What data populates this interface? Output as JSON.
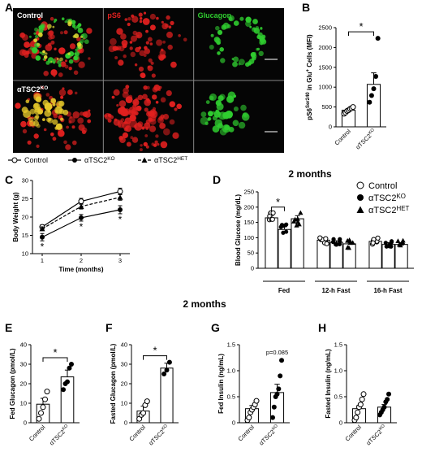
{
  "panel_labels": [
    "A",
    "B",
    "C",
    "D",
    "E",
    "F",
    "G",
    "H"
  ],
  "section_title": "2 months",
  "micrograph": {
    "channels": [
      "Control",
      "pS6",
      "Glucagon"
    ],
    "row2_label": "αTSC2",
    "row2_sup": "KO",
    "colors": {
      "pS6": "#e0201f",
      "Glucagon": "#2fcc2f",
      "Control": "#ffffff"
    }
  },
  "chart_data": [
    {
      "id": "B",
      "type": "bar",
      "categories": [
        "Control",
        "αTSC2KO"
      ],
      "values": [
        420,
        1070
      ],
      "errors": [
        40,
        290
      ],
      "points": [
        [
          330,
          360,
          400,
          420,
          450,
          470,
          500
        ],
        [
          620,
          790,
          960,
          1270,
          2230
        ]
      ],
      "ylabel": "pS6Ser240 in Glu+ Cells (MFI)",
      "ylim": [
        0,
        2500
      ],
      "yticks": [
        0,
        500,
        1000,
        1500,
        2000,
        2500
      ],
      "significance": "*"
    },
    {
      "id": "C",
      "type": "line",
      "x": [
        1,
        2,
        3
      ],
      "xlabel": "Time (months)",
      "ylabel": "Body Weight (g)",
      "ylim": [
        10,
        30
      ],
      "yticks": [
        10,
        15,
        20,
        25,
        30
      ],
      "series": [
        {
          "name": "Control",
          "values": [
            17.3,
            24.3,
            27
          ],
          "errors": [
            0.6,
            0.8,
            0.9
          ],
          "marker": "open-circle"
        },
        {
          "name": "αTSC2KO",
          "values": [
            14.5,
            19.8,
            22
          ],
          "errors": [
            1.0,
            0.9,
            1.1
          ],
          "marker": "filled-circle"
        },
        {
          "name": "αTSC2HET",
          "values": [
            16.8,
            22.9,
            25.4
          ],
          "errors": [
            0.5,
            0.7,
            0.8
          ],
          "marker": "filled-triangle"
        }
      ],
      "annotations": [
        "*",
        "*",
        "*"
      ],
      "legend_items": [
        {
          "label": "Control",
          "sup": ""
        },
        {
          "label": "αTSC2",
          "sup": "KO"
        },
        {
          "label": "αTSC2",
          "sup": "HET"
        }
      ]
    },
    {
      "id": "D",
      "type": "bar",
      "title": "2 months",
      "ylabel": "Blood Glucose (mg/dL)",
      "ylim": [
        0,
        250
      ],
      "yticks": [
        0,
        50,
        100,
        150,
        200,
        250
      ],
      "groups": [
        "Fed",
        "12-h Fast",
        "16-h Fast"
      ],
      "series": [
        {
          "name": "Control",
          "values": [
            165,
            92,
            88
          ],
          "errors": [
            8,
            6,
            6
          ]
        },
        {
          "name": "αTSC2KO",
          "values": [
            127,
            85,
            78
          ],
          "errors": [
            9,
            5,
            6
          ]
        },
        {
          "name": "αTSC2HET",
          "values": [
            162,
            80,
            78
          ],
          "errors": [
            10,
            6,
            6
          ]
        }
      ],
      "significance": "*",
      "legend_items": [
        {
          "label": "Control",
          "sup": ""
        },
        {
          "label": "αTSC2",
          "sup": "KO"
        },
        {
          "label": "αTSC2",
          "sup": "HET"
        }
      ]
    },
    {
      "id": "E",
      "type": "bar",
      "categories": [
        "Control",
        "αTSC2KO"
      ],
      "values": [
        9.5,
        23.5
      ],
      "errors": [
        3,
        3.5
      ],
      "points": [
        [
          2,
          5,
          8,
          12,
          16
        ],
        [
          17,
          20,
          21,
          28,
          30
        ]
      ],
      "ylabel": "Fed Glucagon (pmol/L)",
      "ylim": [
        0,
        40
      ],
      "yticks": [
        0,
        10,
        20,
        30,
        40
      ],
      "significance": "*"
    },
    {
      "id": "F",
      "type": "bar",
      "categories": [
        "Control",
        "αTSC2KO"
      ],
      "values": [
        6,
        28
      ],
      "errors": [
        2.5,
        2.5
      ],
      "points": [
        [
          2,
          4,
          5,
          9,
          11
        ],
        [
          25,
          27,
          31
        ]
      ],
      "ylabel": "Fasted Glucagon (pmol/L)",
      "ylim": [
        0,
        40
      ],
      "yticks": [
        0,
        10,
        20,
        30,
        40
      ],
      "significance": "*"
    },
    {
      "id": "G",
      "type": "bar",
      "categories": [
        "Control",
        "αTSC2KO"
      ],
      "values": [
        0.27,
        0.58
      ],
      "errors": [
        0.06,
        0.16
      ],
      "points": [
        [
          0.05,
          0.1,
          0.2,
          0.25,
          0.3,
          0.35,
          0.42
        ],
        [
          0.1,
          0.3,
          0.5,
          0.55,
          0.65,
          0.9,
          1.2
        ]
      ],
      "ylabel": "Fed Insulin (ng/mL)",
      "ylim": [
        0,
        1.5
      ],
      "yticks": [
        0,
        0.5,
        1.0,
        1.5
      ],
      "significance": "p=0.085"
    },
    {
      "id": "H",
      "type": "bar",
      "categories": [
        "Control",
        "αTSC2KO"
      ],
      "values": [
        0.27,
        0.3
      ],
      "errors": [
        0.06,
        0.05
      ],
      "points": [
        [
          0.05,
          0.1,
          0.2,
          0.3,
          0.35,
          0.45,
          0.55
        ],
        [
          0.15,
          0.2,
          0.25,
          0.3,
          0.4,
          0.45,
          0.55
        ]
      ],
      "ylabel": "Fasted Insulin (ng/mL)",
      "ylim": [
        0,
        1.5
      ],
      "yticks": [
        0,
        0.5,
        1.0,
        1.5
      ]
    }
  ]
}
